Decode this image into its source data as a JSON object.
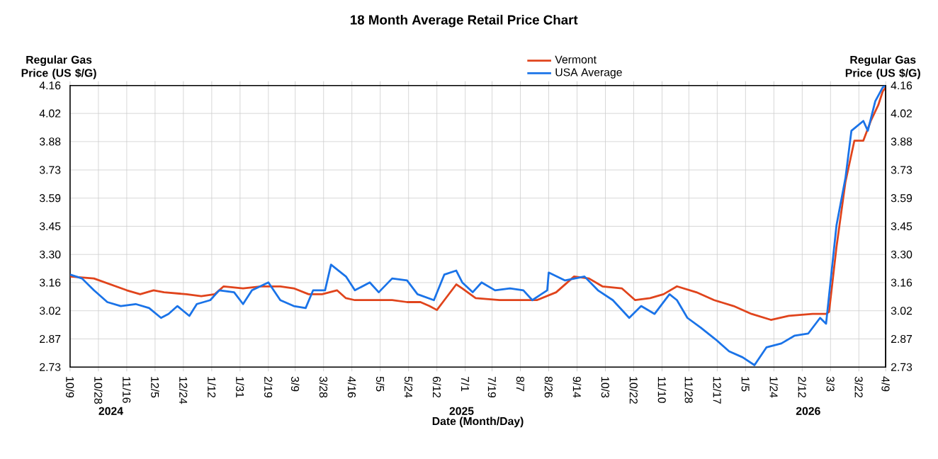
{
  "chart_data": {
    "type": "line",
    "title": "18 Month Average Retail Price Chart",
    "xlabel": "Date (Month/Day)",
    "ylabel": "Regular Gas Price (US $/G)",
    "y2label": "Regular Gas Price (US $/G)",
    "annotations": [
      "2024",
      "2025",
      "2026"
    ],
    "series": [
      {
        "name": "Vermont",
        "color": "#e0441c",
        "x": [
          "2024-10-09",
          "2024-10-25",
          "2024-11-16",
          "2024-11-25",
          "2024-12-04",
          "2024-12-11",
          "2024-12-26",
          "2025-01-05",
          "2025-01-14",
          "2025-01-20",
          "2025-02-02",
          "2025-02-14",
          "2025-02-27",
          "2025-03-08",
          "2025-03-18",
          "2025-03-27",
          "2025-04-06",
          "2025-04-12",
          "2025-04-18",
          "2025-05-01",
          "2025-05-13",
          "2025-05-23",
          "2025-06-01",
          "2025-06-07",
          "2025-06-12",
          "2025-06-17",
          "2025-06-25",
          "2025-06-29",
          "2025-07-08",
          "2025-07-24",
          "2025-08-09",
          "2025-08-18",
          "2025-08-31",
          "2025-09-12",
          "2025-09-22",
          "2025-10-01",
          "2025-10-14",
          "2025-10-23",
          "2025-11-02",
          "2025-11-11",
          "2025-11-20",
          "2025-12-03",
          "2025-12-15",
          "2025-12-28",
          "2026-01-09",
          "2026-01-22",
          "2026-02-03",
          "2026-02-19",
          "2026-02-28",
          "2026-03-02",
          "2026-03-07",
          "2026-03-13",
          "2026-03-19",
          "2026-03-25",
          "2026-03-30",
          "2026-04-04",
          "2026-04-07",
          "2026-04-09"
        ],
        "values": [
          3.19,
          3.18,
          3.12,
          3.1,
          3.12,
          3.11,
          3.1,
          3.09,
          3.1,
          3.14,
          3.13,
          3.14,
          3.14,
          3.13,
          3.1,
          3.1,
          3.12,
          3.08,
          3.07,
          3.07,
          3.07,
          3.06,
          3.06,
          3.04,
          3.02,
          3.07,
          3.15,
          3.13,
          3.08,
          3.07,
          3.07,
          3.07,
          3.11,
          3.19,
          3.18,
          3.14,
          3.13,
          3.07,
          3.08,
          3.1,
          3.14,
          3.11,
          3.07,
          3.04,
          3.0,
          2.97,
          2.99,
          3.0,
          3.0,
          3.01,
          3.34,
          3.67,
          3.88,
          3.88,
          3.98,
          4.06,
          4.13,
          4.15
        ]
      },
      {
        "name": "USA Average",
        "color": "#1a73e8",
        "x": [
          "2024-10-09",
          "2024-10-17",
          "2024-10-25",
          "2024-11-03",
          "2024-11-12",
          "2024-11-22",
          "2024-12-01",
          "2024-12-09",
          "2024-12-14",
          "2024-12-20",
          "2024-12-28",
          "2025-01-02",
          "2025-01-11",
          "2025-01-17",
          "2025-01-27",
          "2025-02-02",
          "2025-02-08",
          "2025-02-19",
          "2025-02-27",
          "2025-03-08",
          "2025-03-16",
          "2025-03-21",
          "2025-03-29",
          "2025-04-02",
          "2025-04-12",
          "2025-04-18",
          "2025-04-28",
          "2025-05-04",
          "2025-05-13",
          "2025-05-23",
          "2025-05-30",
          "2025-06-10",
          "2025-06-17",
          "2025-06-25",
          "2025-06-29",
          "2025-07-06",
          "2025-07-12",
          "2025-07-21",
          "2025-07-31",
          "2025-08-09",
          "2025-08-15",
          "2025-08-25",
          "2025-08-26",
          "2025-09-06",
          "2025-09-19",
          "2025-09-28",
          "2025-10-08",
          "2025-10-19",
          "2025-10-27",
          "2025-11-05",
          "2025-11-15",
          "2025-11-20",
          "2025-11-27",
          "2025-12-06",
          "2025-12-16",
          "2025-12-25",
          "2026-01-03",
          "2026-01-11",
          "2026-01-19",
          "2026-01-29",
          "2026-02-07",
          "2026-02-16",
          "2026-02-24",
          "2026-02-28",
          "2026-03-07",
          "2026-03-13",
          "2026-03-17",
          "2026-03-25",
          "2026-03-28",
          "2026-04-02",
          "2026-04-07",
          "2026-04-09"
        ],
        "values": [
          3.2,
          3.18,
          3.12,
          3.06,
          3.04,
          3.05,
          3.03,
          2.98,
          3.0,
          3.04,
          2.99,
          3.05,
          3.07,
          3.12,
          3.11,
          3.05,
          3.12,
          3.16,
          3.07,
          3.04,
          3.03,
          3.12,
          3.12,
          3.25,
          3.19,
          3.12,
          3.16,
          3.11,
          3.18,
          3.17,
          3.1,
          3.07,
          3.2,
          3.22,
          3.16,
          3.11,
          3.16,
          3.12,
          3.13,
          3.12,
          3.07,
          3.12,
          3.21,
          3.17,
          3.19,
          3.12,
          3.07,
          2.98,
          3.04,
          3.0,
          3.1,
          3.07,
          2.98,
          2.93,
          2.87,
          2.81,
          2.78,
          2.74,
          2.83,
          2.85,
          2.89,
          2.9,
          2.98,
          2.95,
          3.45,
          3.69,
          3.93,
          3.98,
          3.93,
          4.08,
          4.15,
          4.16
        ]
      }
    ],
    "xlim": [
      "2024-10-09",
      "2026-04-09"
    ],
    "xticks": [
      {
        "value": "2024-10-09",
        "label": "10/9"
      },
      {
        "value": "2024-10-28",
        "label": "10/28"
      },
      {
        "value": "2024-11-16",
        "label": "11/16"
      },
      {
        "value": "2024-12-05",
        "label": "12/5"
      },
      {
        "value": "2024-12-24",
        "label": "12/24"
      },
      {
        "value": "2025-01-12",
        "label": "1/12"
      },
      {
        "value": "2025-01-31",
        "label": "1/31"
      },
      {
        "value": "2025-02-19",
        "label": "2/19"
      },
      {
        "value": "2025-03-09",
        "label": "3/9"
      },
      {
        "value": "2025-03-28",
        "label": "3/28"
      },
      {
        "value": "2025-04-16",
        "label": "4/16"
      },
      {
        "value": "2025-05-05",
        "label": "5/5"
      },
      {
        "value": "2025-05-24",
        "label": "5/24"
      },
      {
        "value": "2025-06-12",
        "label": "6/12"
      },
      {
        "value": "2025-07-01",
        "label": "7/1"
      },
      {
        "value": "2025-07-19",
        "label": "7/19"
      },
      {
        "value": "2025-08-07",
        "label": "8/7"
      },
      {
        "value": "2025-08-26",
        "label": "8/26"
      },
      {
        "value": "2025-09-14",
        "label": "9/14"
      },
      {
        "value": "2025-10-03",
        "label": "10/3"
      },
      {
        "value": "2025-10-22",
        "label": "10/22"
      },
      {
        "value": "2025-11-10",
        "label": "11/10"
      },
      {
        "value": "2025-11-28",
        "label": "11/28"
      },
      {
        "value": "2025-12-17",
        "label": "12/17"
      },
      {
        "value": "2026-01-05",
        "label": "1/5"
      },
      {
        "value": "2026-01-24",
        "label": "1/24"
      },
      {
        "value": "2026-02-12",
        "label": "2/12"
      },
      {
        "value": "2026-03-03",
        "label": "3/3"
      },
      {
        "value": "2026-03-22",
        "label": "3/22"
      },
      {
        "value": "2026-04-09",
        "label": "4/9"
      }
    ],
    "ylim": [
      2.73,
      4.16
    ],
    "yticks": [
      2.73,
      {
        "value": 2.873,
        "label": "2.87"
      },
      {
        "value": 3.016,
        "label": "3.02"
      },
      {
        "value": 3.159,
        "label": "3.16"
      },
      {
        "value": 3.302,
        "label": "3.30"
      },
      {
        "value": 3.445,
        "label": "3.45"
      },
      {
        "value": 3.588,
        "label": "3.59"
      },
      {
        "value": 3.731,
        "label": "3.73"
      },
      {
        "value": 3.875,
        "label": "3.88"
      },
      {
        "value": 4.018,
        "label": "4.02"
      },
      4.16
    ],
    "y2lim": [
      2.73,
      4.16
    ],
    "y2ticks": [
      2.73,
      {
        "value": 2.873,
        "label": "2.87"
      },
      {
        "value": 3.016,
        "label": "3.02"
      },
      {
        "value": 3.159,
        "label": "3.16"
      },
      {
        "value": 3.302,
        "label": "3.30"
      },
      {
        "value": 3.445,
        "label": "3.45"
      },
      {
        "value": 3.588,
        "label": "3.59"
      },
      {
        "value": 3.731,
        "label": "3.73"
      },
      {
        "value": 3.875,
        "label": "3.88"
      },
      {
        "value": 4.018,
        "label": "4.02"
      },
      4.16
    ],
    "grid": true,
    "legend": "top",
    "marker": "none",
    "line_style": "solid"
  }
}
